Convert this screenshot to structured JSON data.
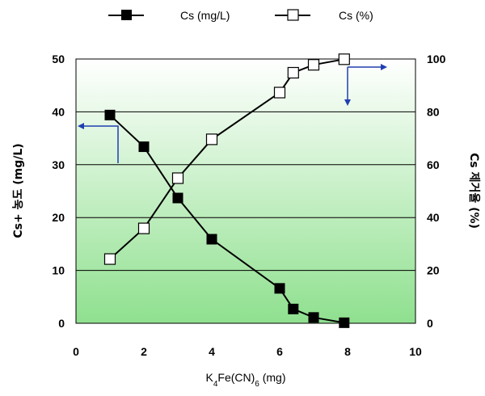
{
  "chart_data": {
    "type": "line",
    "x_axis": {
      "label_main": "K",
      "label_sub1": "4",
      "label_mid": "Fe(CN)",
      "label_sub2": "6",
      "label_end": " (mg)",
      "range": [
        0,
        10
      ],
      "ticks": [
        0,
        2,
        4,
        6,
        8,
        10
      ]
    },
    "y_left": {
      "label": "Cs+ 농도 (mg/L)",
      "range": [
        0,
        50
      ],
      "ticks": [
        0,
        10,
        20,
        30,
        40,
        50
      ]
    },
    "y_right": {
      "label": "Cs 제거율 (%)",
      "range": [
        0,
        100
      ],
      "ticks": [
        0,
        20,
        40,
        60,
        80,
        100
      ]
    },
    "grid": "horizontal",
    "legend_position": "top",
    "series": [
      {
        "name": "Cs (mg/L)",
        "axis": "left",
        "marker": "filled-square",
        "points": [
          {
            "x": 1,
            "y": 39.4
          },
          {
            "x": 2,
            "y": 33.4
          },
          {
            "x": 3,
            "y": 23.7
          },
          {
            "x": 4,
            "y": 15.9
          },
          {
            "x": 6,
            "y": 6.6
          },
          {
            "x": 6.4,
            "y": 2.7
          },
          {
            "x": 7,
            "y": 1.1
          },
          {
            "x": 7.9,
            "y": 0.1
          }
        ]
      },
      {
        "name": "Cs (%)",
        "axis": "right",
        "marker": "open-square",
        "points": [
          {
            "x": 1,
            "y": 24.3
          },
          {
            "x": 2,
            "y": 35.9
          },
          {
            "x": 3,
            "y": 54.9
          },
          {
            "x": 4,
            "y": 69.6
          },
          {
            "x": 6,
            "y": 87.3
          },
          {
            "x": 6.4,
            "y": 94.8
          },
          {
            "x": 7,
            "y": 97.8
          },
          {
            "x": 7.9,
            "y": 99.9
          }
        ]
      }
    ],
    "colors": {
      "plot_top": "#ffffff",
      "plot_bottom": "#8fe08f",
      "line": "#000000",
      "arrow": "#1f3fb0"
    }
  }
}
